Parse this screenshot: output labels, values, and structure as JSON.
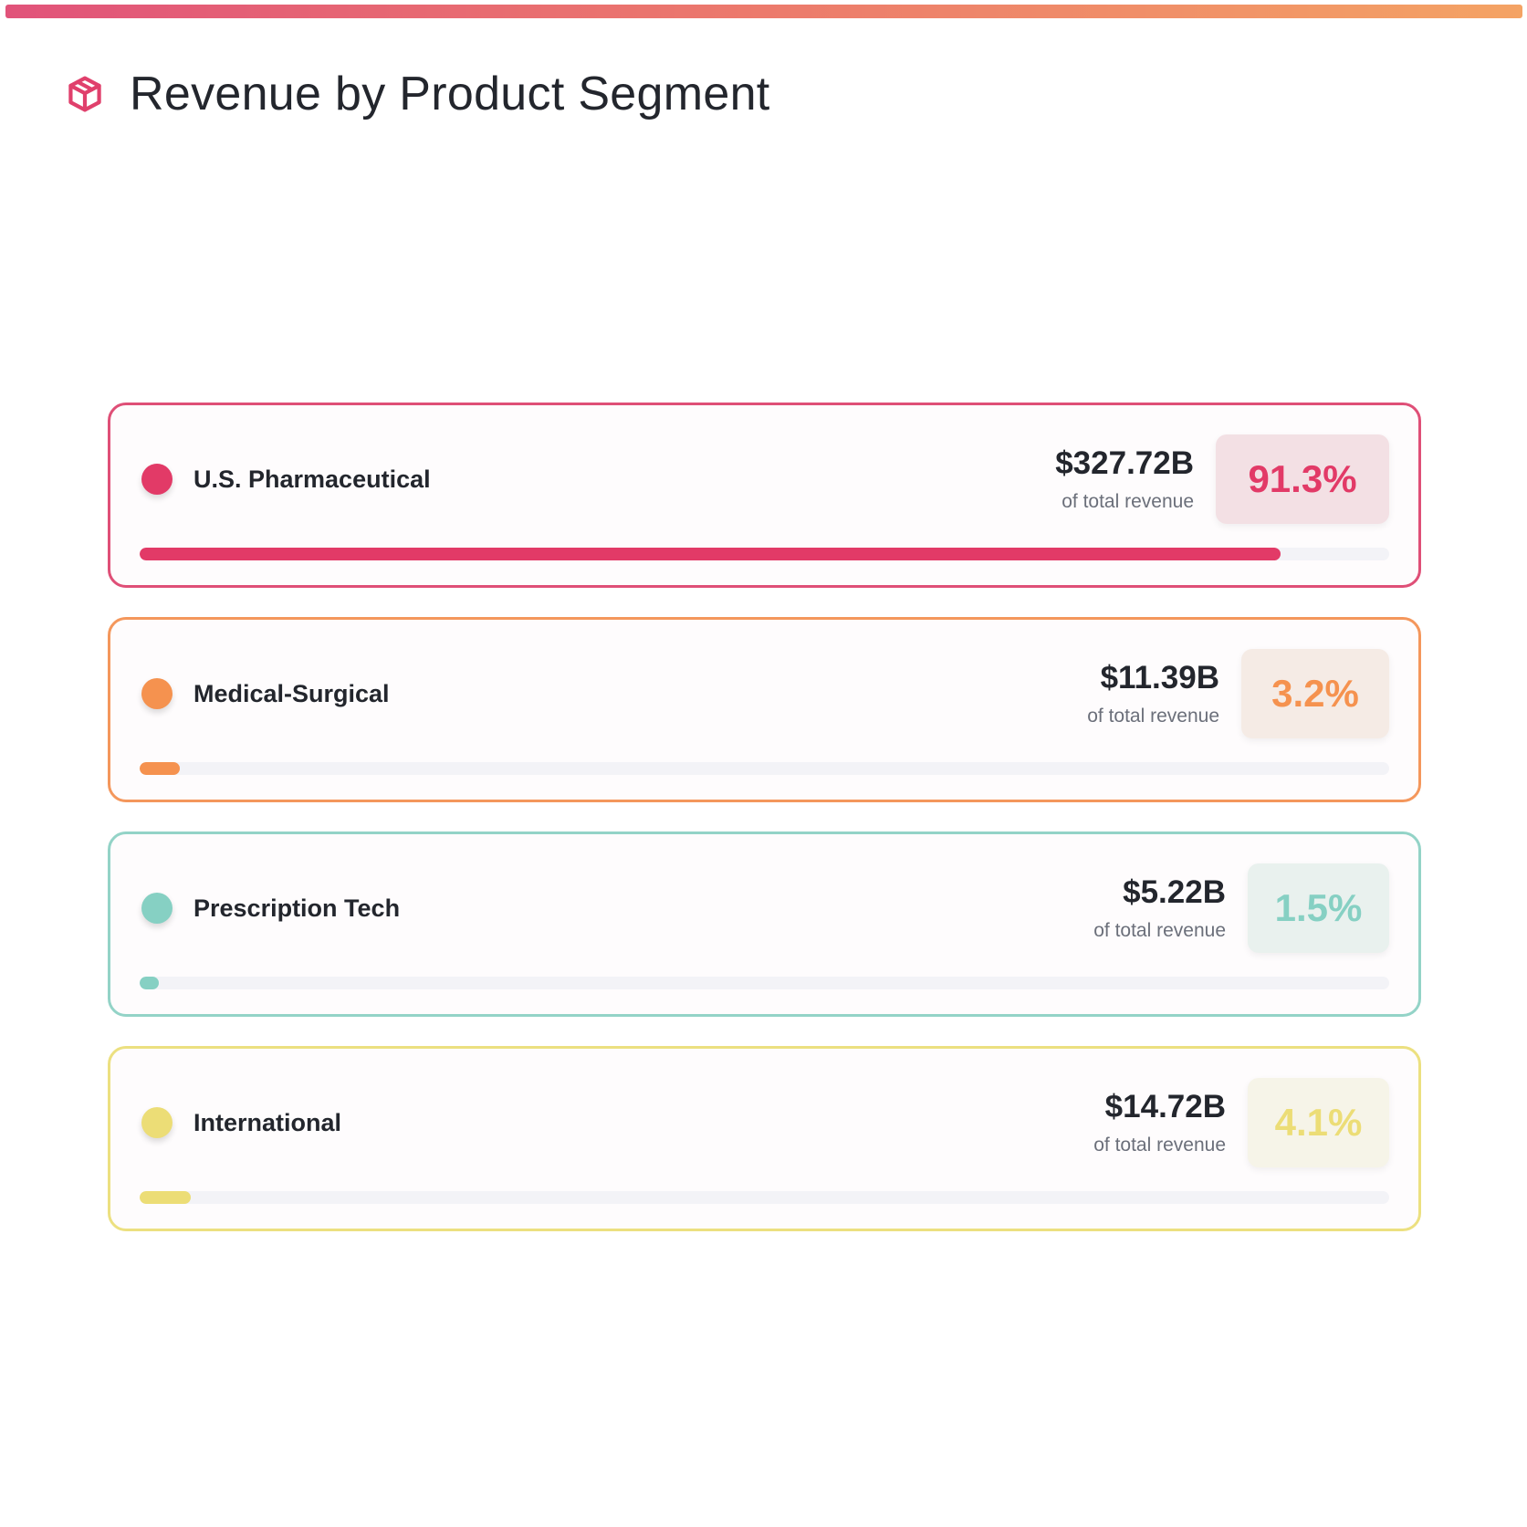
{
  "page": {
    "title": "Revenue by Product Segment",
    "icon": "package-box-icon",
    "accent_gradient": [
      "#e1537a",
      "#f4a364"
    ]
  },
  "chart_data": {
    "type": "bar",
    "title": "Revenue by Product Segment",
    "orientation": "horizontal",
    "categories": [
      "U.S. Pharmaceutical",
      "Medical-Surgical",
      "Prescription Tech",
      "International"
    ],
    "values": [
      327.72,
      11.39,
      5.22,
      14.72
    ],
    "value_unit": "B",
    "value_labels": [
      "$327.72B",
      "$11.39B",
      "$5.22B",
      "$14.72B"
    ],
    "share_percent": [
      91.3,
      3.2,
      1.5,
      4.1
    ],
    "share_labels": [
      "91.3%",
      "3.2%",
      "1.5%",
      "4.1%"
    ],
    "caption": "of total revenue",
    "xlim": [
      0,
      100
    ],
    "grid": false,
    "colors": [
      "#e23a67",
      "#f5924f",
      "#86d0c3",
      "#ecdd76"
    ],
    "segments": [
      {
        "name": "U.S. Pharmaceutical",
        "amount": "$327.72B",
        "caption": "of total revenue",
        "percent_label": "91.3%",
        "percent": 91.3,
        "color": "#e23a67",
        "border_color": "#df4f77",
        "badge_bg": "#f3e0e4"
      },
      {
        "name": "Medical-Surgical",
        "amount": "$11.39B",
        "caption": "of total revenue",
        "percent_label": "3.2%",
        "percent": 3.2,
        "color": "#f5924f",
        "border_color": "#f4975c",
        "badge_bg": "#f5ebe5"
      },
      {
        "name": "Prescription Tech",
        "amount": "$5.22B",
        "caption": "of total revenue",
        "percent_label": "1.5%",
        "percent": 1.5,
        "color": "#86d0c3",
        "border_color": "#93d3c7",
        "badge_bg": "#e9f1ee"
      },
      {
        "name": "International",
        "amount": "$14.72B",
        "caption": "of total revenue",
        "percent_label": "4.1%",
        "percent": 4.1,
        "color": "#ecdd76",
        "border_color": "#ece080",
        "badge_bg": "#f6f4e8"
      }
    ]
  }
}
